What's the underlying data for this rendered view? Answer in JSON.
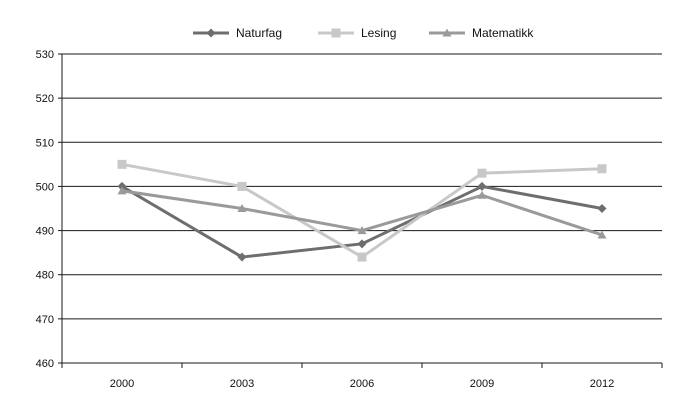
{
  "chart_data": {
    "type": "line",
    "categories": [
      "2000",
      "2003",
      "2006",
      "2009",
      "2012"
    ],
    "ylim": [
      460,
      530
    ],
    "yticks": [
      460,
      470,
      480,
      490,
      500,
      510,
      520,
      530
    ],
    "grid": true,
    "legend_position": "top-center",
    "series": [
      {
        "name": "Naturfag",
        "values": [
          500,
          484,
          487,
          500,
          495
        ],
        "marker": "diamond",
        "color": "#6e6e6e"
      },
      {
        "name": "Lesing",
        "values": [
          505,
          500,
          484,
          503,
          504
        ],
        "marker": "square",
        "color": "#c8c8c8"
      },
      {
        "name": "Matematikk",
        "values": [
          499,
          495,
          490,
          498,
          489
        ],
        "marker": "triangle",
        "color": "#9a9a9a"
      }
    ]
  }
}
